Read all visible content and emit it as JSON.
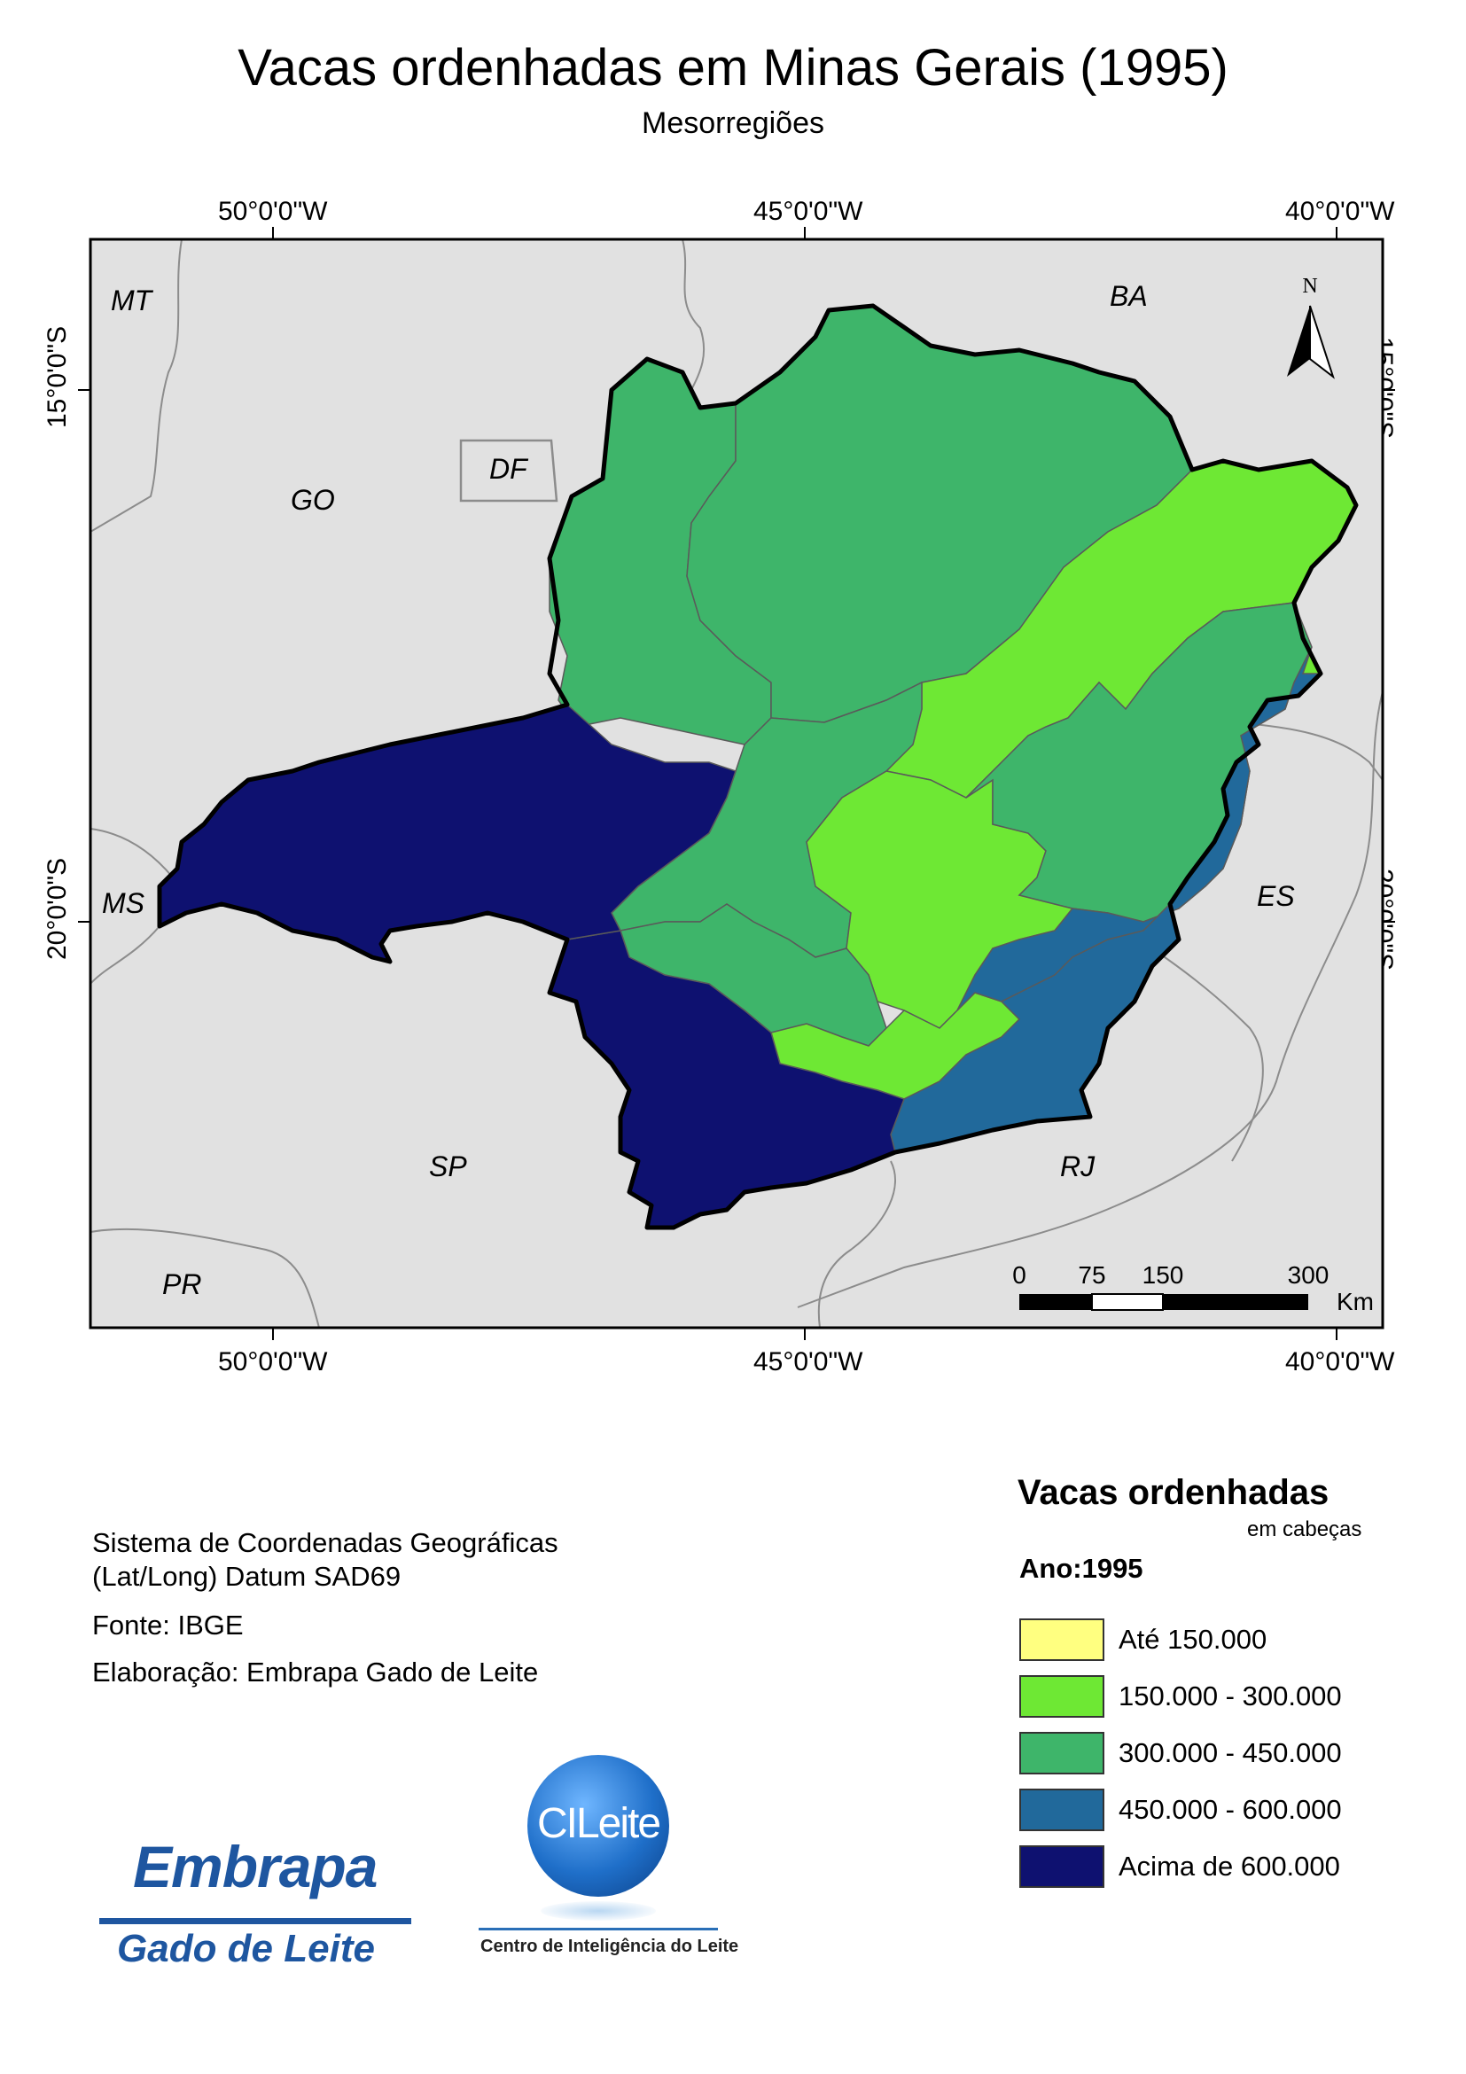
{
  "title": "Vacas ordenhadas em Minas Gerais (1995)",
  "subtitle": "Mesorregiões",
  "graticule": {
    "lon_labels": [
      "50°0'0\"W",
      "45°0'0\"W",
      "40°0'0\"W"
    ],
    "lat_labels": [
      "15°0'0\"S",
      "20°0'0\"S"
    ]
  },
  "north_arrow": {
    "label": "N"
  },
  "state_labels": [
    "MT",
    "BA",
    "GO",
    "DF",
    "MS",
    "ES",
    "SP",
    "RJ",
    "PR"
  ],
  "scale_bar": {
    "ticks": [
      "0",
      "75",
      "150",
      "300"
    ],
    "unit": "Km"
  },
  "info": {
    "crs_line1": "Sistema de Coordenadas Geográficas",
    "crs_line2": "(Lat/Long) Datum SAD69",
    "source": "Fonte: IBGE",
    "author": "Elaboração: Embrapa Gado de Leite"
  },
  "legend": {
    "title": "Vacas ordenhadas",
    "unit": "em cabeças",
    "year": "Ano:1995",
    "classes": [
      {
        "label": "Até 150.000",
        "color": "#ffff80"
      },
      {
        "label": "150.000 - 300.000",
        "color": "#6ee834"
      },
      {
        "label": "300.000 - 450.000",
        "color": "#3eb56a"
      },
      {
        "label": "450.000 - 600.000",
        "color": "#21699b"
      },
      {
        "label": "Acima de 600.000",
        "color": "#0e1170"
      }
    ]
  },
  "colors": {
    "background_land": "#e1e1e1",
    "state_border": "#8c8c8c",
    "mg_outline": "#000000"
  },
  "logos": {
    "embrapa_brand": "Embrapa",
    "embrapa_sub": "Gado de Leite",
    "cileite_brand": "CILeite",
    "cileite_caption": "Centro de Inteligência do Leite"
  }
}
